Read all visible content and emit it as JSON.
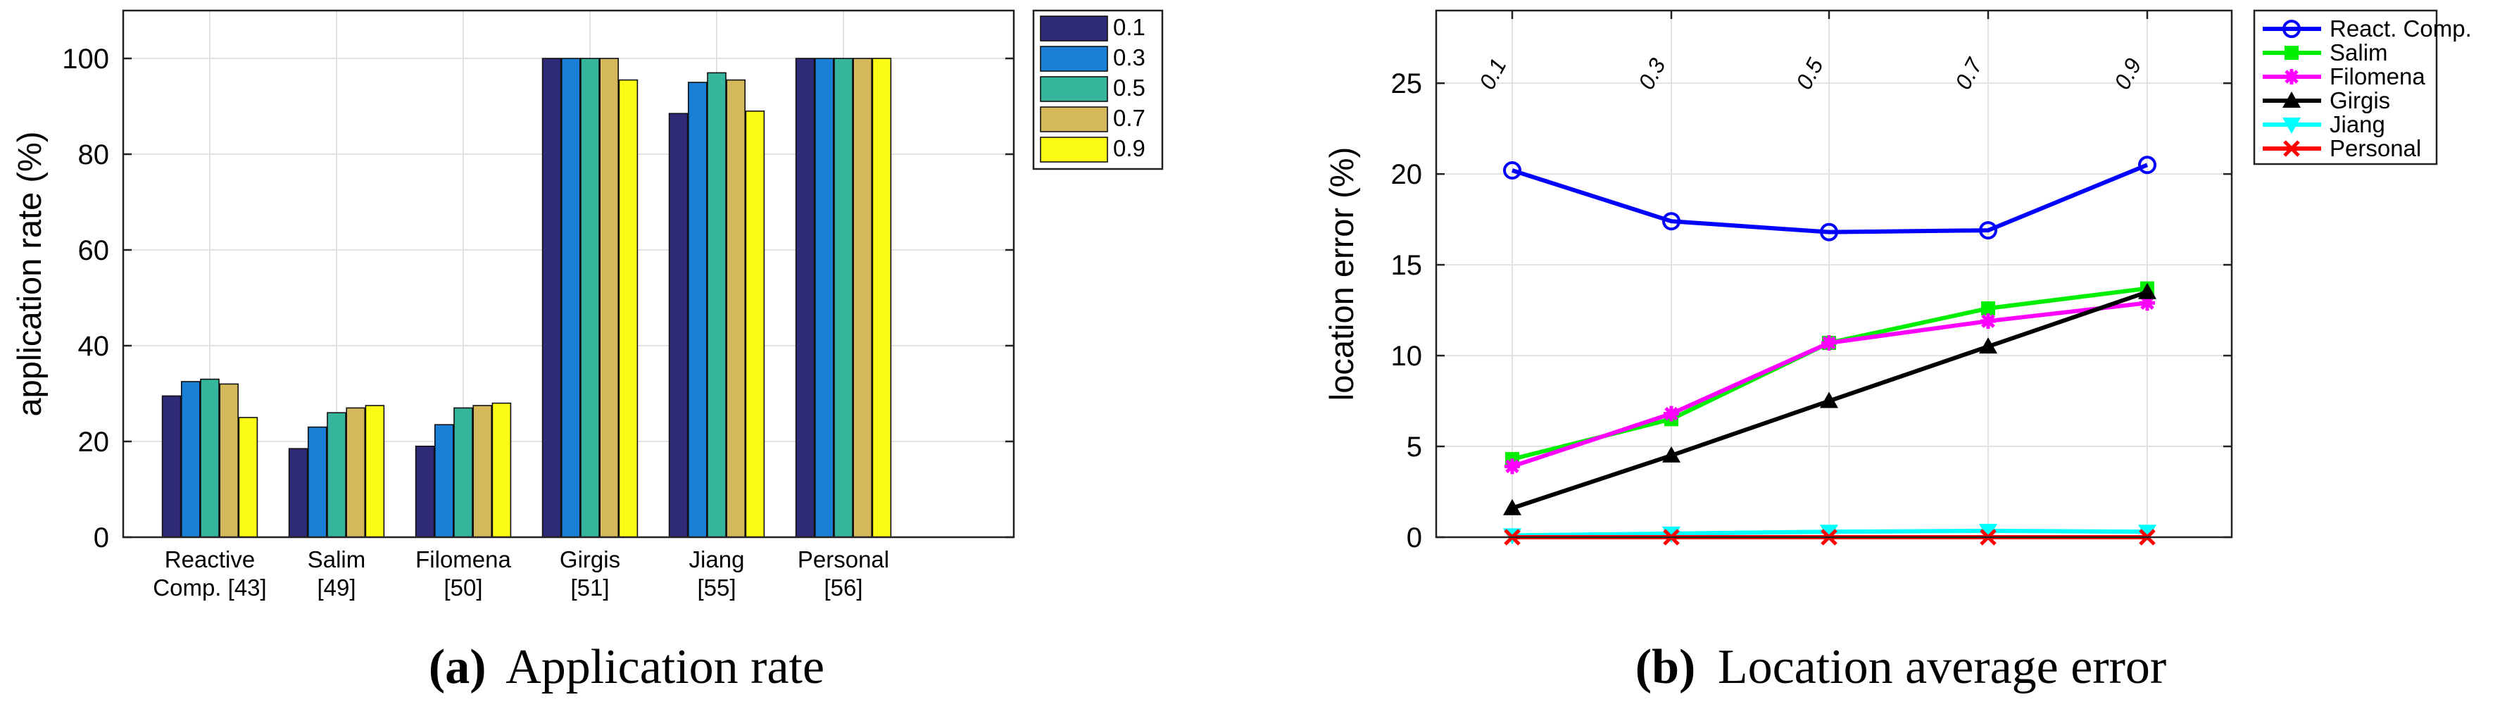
{
  "chart_data": [
    {
      "type": "bar",
      "caption_label": "(a)",
      "caption_text": "Application rate",
      "ylabel": "application rate (%)",
      "ylim": [
        0,
        110
      ],
      "yticks": [
        "0",
        "20",
        "40",
        "60",
        "80",
        "100"
      ],
      "grid": true,
      "legend_position": "top-right, outside",
      "categories": [
        [
          "Reactive",
          "Comp. [43]"
        ],
        [
          "Salim",
          "[49]"
        ],
        [
          "Filomena",
          "[50]"
        ],
        [
          "Girgis",
          "[51]"
        ],
        [
          "Jiang",
          "[55]"
        ],
        [
          "Personal",
          "[56]"
        ]
      ],
      "series": [
        {
          "name": "0.1",
          "color": "#2e2a78",
          "values": [
            29.5,
            18.5,
            19,
            100,
            88.5,
            100
          ]
        },
        {
          "name": "0.3",
          "color": "#1a7fd6",
          "values": [
            32.5,
            23,
            23.5,
            100,
            95,
            100
          ]
        },
        {
          "name": "0.5",
          "color": "#35b59c",
          "values": [
            33,
            26,
            27,
            100,
            97,
            100
          ]
        },
        {
          "name": "0.7",
          "color": "#d4b85a",
          "values": [
            32,
            27,
            27.5,
            100,
            95.5,
            100
          ]
        },
        {
          "name": "0.9",
          "color": "#fbfb13",
          "values": [
            25,
            27.5,
            28,
            95.5,
            89,
            100
          ]
        }
      ]
    },
    {
      "type": "line",
      "caption_label": "(b)",
      "caption_text": "Location average error",
      "ylabel": "location error (%)",
      "ylim": [
        0,
        29
      ],
      "yticks": [
        "0",
        "5",
        "10",
        "15",
        "20",
        "25"
      ],
      "grid": true,
      "legend_position": "top-right, outside",
      "x_top_labels": [
        "0.1",
        "0.3",
        "0.5",
        "0.7",
        "0.9"
      ],
      "series": [
        {
          "name": "React. Comp.",
          "color": "#0000ff",
          "marker": "circle",
          "values": [
            20.2,
            17.4,
            16.8,
            16.9,
            20.5
          ]
        },
        {
          "name": "Salim",
          "color": "#00ee00",
          "marker": "square",
          "values": [
            4.3,
            6.5,
            10.7,
            12.6,
            13.7
          ]
        },
        {
          "name": "Filomena",
          "color": "#ff00ff",
          "marker": "star",
          "values": [
            3.9,
            6.8,
            10.7,
            11.9,
            12.9
          ]
        },
        {
          "name": "Girgis",
          "color": "#000000",
          "marker": "triangle-up",
          "values": [
            1.6,
            4.5,
            7.5,
            10.5,
            13.5
          ]
        },
        {
          "name": "Jiang",
          "color": "#00ffff",
          "marker": "triangle-down",
          "values": [
            0.1,
            0.2,
            0.3,
            0.35,
            0.3
          ]
        },
        {
          "name": "Personal",
          "color": "#ff0000",
          "marker": "x",
          "values": [
            0.0,
            0.0,
            0.0,
            0.0,
            0.0
          ]
        }
      ]
    }
  ]
}
